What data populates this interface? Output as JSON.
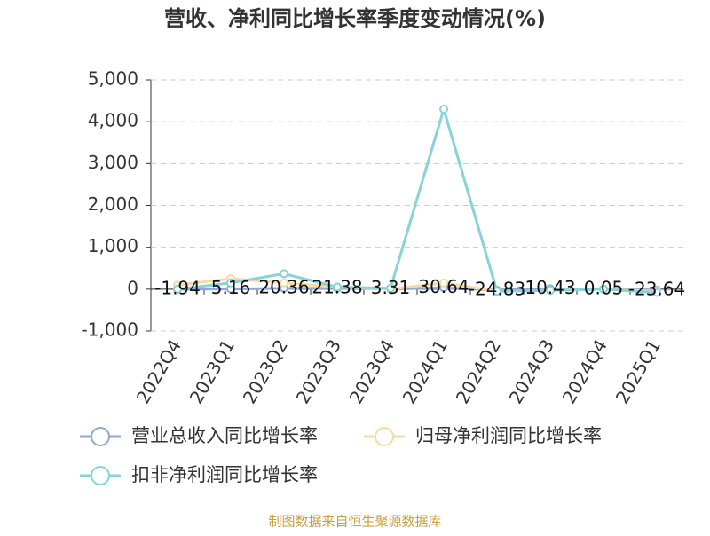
{
  "chart_data": {
    "type": "line",
    "title": "营收、净利同比增长率季度变动情况(%)",
    "categories": [
      "2022Q4",
      "2023Q1",
      "2023Q2",
      "2023Q3",
      "2023Q4",
      "2024Q1",
      "2024Q2",
      "2024Q3",
      "2024Q4",
      "2025Q1"
    ],
    "series": [
      {
        "name": "营业总收入同比增长率",
        "color": "#8fa8d8",
        "values": [
          -1.94,
          5.16,
          20.36,
          21.38,
          3.31,
          30.64,
          -24.83,
          10.43,
          0.05,
          -23.64
        ]
      },
      {
        "name": "归母净利润同比增长率",
        "color": "#f9d9a0",
        "values": [
          100,
          250,
          150,
          50,
          0,
          150,
          -50,
          -30,
          0,
          -50
        ]
      },
      {
        "name": "扣非净利润同比增长率",
        "color": "#86d3d9",
        "values": [
          0,
          150,
          370,
          50,
          20,
          4300,
          -50,
          -30,
          0,
          -80
        ]
      }
    ],
    "ylim": [
      -1000,
      5000
    ],
    "yticks": [
      {
        "value": -1000,
        "label": "-1,000"
      },
      0,
      {
        "value": 1000,
        "label": "1,000"
      },
      {
        "value": 2000,
        "label": "2,000"
      },
      {
        "value": 3000,
        "label": "3,000"
      },
      {
        "value": 4000,
        "label": "4,000"
      },
      {
        "value": 5000,
        "label": "5,000"
      }
    ],
    "grid": true,
    "value_label_series": 0,
    "source": "制图数据来自恒生聚源数据库"
  }
}
